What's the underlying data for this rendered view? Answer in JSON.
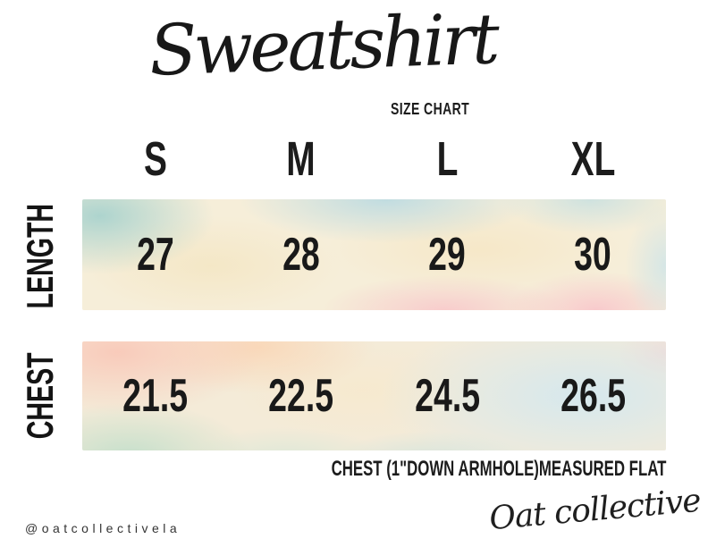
{
  "header": {
    "title": "Sweatshirt",
    "subtitle": "SIZE CHART"
  },
  "table": {
    "columns": [
      "S",
      "M",
      "L",
      "XL"
    ],
    "rows": [
      {
        "label": "LENGTH",
        "values": [
          "27",
          "28",
          "29",
          "30"
        ]
      },
      {
        "label": "CHEST",
        "values": [
          "21.5",
          "22.5",
          "24.5",
          "26.5"
        ]
      }
    ],
    "note": "CHEST (1\"DOWN ARMHOLE)MEASURED FLAT"
  },
  "footer": {
    "social_handle": "@oatcollectivela",
    "brand_signature": "Oat collective"
  },
  "colors": {
    "background": "#ffffff",
    "text": "#1c1c1c",
    "watercolor_teal": "#a5d1cd",
    "watercolor_blue": "#d4e8ef",
    "watercolor_yellow": "#f4e6c3",
    "watercolor_pink": "#f8c4c9",
    "watercolor_peach": "#f9c9b9",
    "watercolor_mint": "#c4dfcb"
  }
}
